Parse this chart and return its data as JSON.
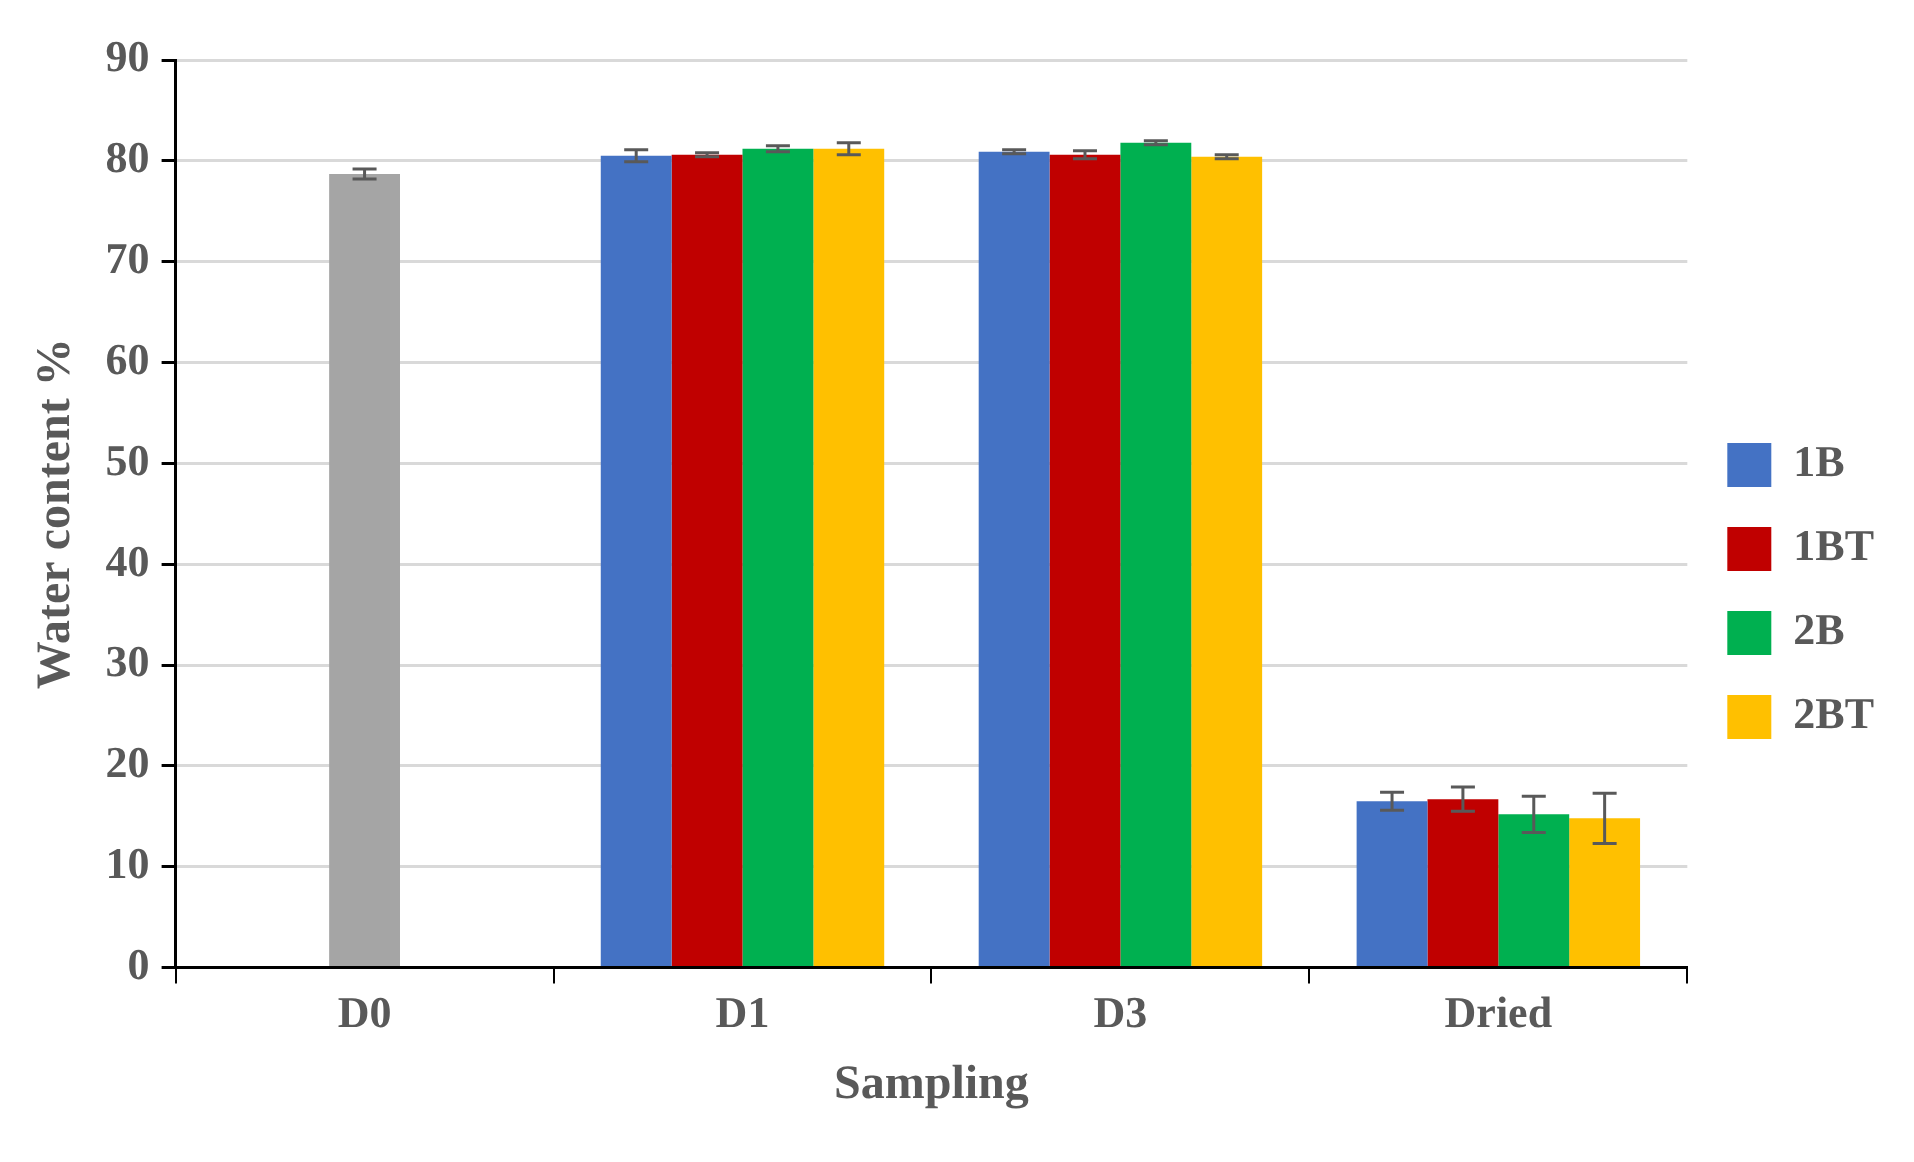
{
  "chart_data": {
    "type": "bar",
    "xlabel": "Sampling",
    "ylabel": "Water content %",
    "categories": [
      "D0",
      "D1",
      "D3",
      "Dried"
    ],
    "series": [
      {
        "color": "#a5a5a5",
        "values": [
          78.7,
          null,
          null,
          null
        ],
        "errors": [
          0.5,
          null,
          null,
          null
        ]
      },
      {
        "name": "1B",
        "color": "#4472c4",
        "values": [
          null,
          80.5,
          80.9,
          16.5
        ],
        "errors": [
          null,
          0.6,
          0.2,
          0.9
        ]
      },
      {
        "name": "1BT",
        "color": "#c00000",
        "values": [
          null,
          80.6,
          80.6,
          16.7
        ],
        "errors": [
          null,
          0.2,
          0.4,
          1.2
        ]
      },
      {
        "name": "2B",
        "color": "#00b050",
        "values": [
          null,
          81.2,
          81.8,
          15.2
        ],
        "errors": [
          null,
          0.3,
          0.2,
          1.8
        ]
      },
      {
        "name": "2BT",
        "color": "#ffc000",
        "values": [
          null,
          81.2,
          80.4,
          14.8
        ],
        "errors": [
          null,
          0.6,
          0.2,
          2.5
        ]
      }
    ],
    "ylim": [
      0,
      90
    ],
    "yticks": [
      0,
      10,
      20,
      30,
      40,
      50,
      60,
      70,
      80,
      90
    ],
    "grid": "y",
    "legend": "right"
  }
}
